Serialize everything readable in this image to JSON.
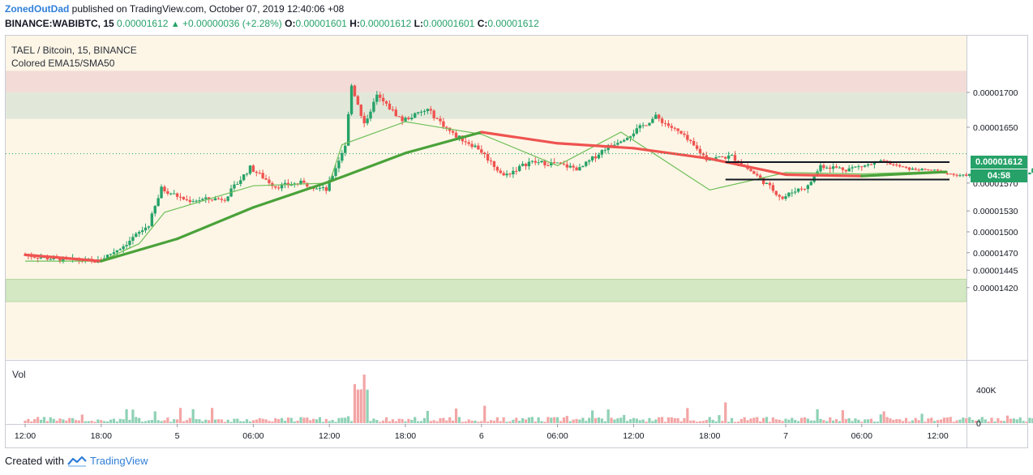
{
  "header": {
    "author": "ZonedOutDad",
    "published": "published on TradingView.com, October 07, 2019 12:40:06 +08",
    "symbol": "BINANCE:WABIBTC, 15",
    "last": "0.00001612",
    "change": "+0.00000036 (+2.28%)",
    "o_label": "O:",
    "o_value": "0.00001601",
    "h_label": "H:",
    "h_value": "0.00001612",
    "l_label": "L:",
    "l_value": "0.00001601",
    "c_label": "C:",
    "c_value": "0.00001612"
  },
  "legend": {
    "title": "TAEL / Bitcoin, 15, BINANCE",
    "indicator": "Colored EMA15/SMA50"
  },
  "volume_pane": {
    "label": "Vol",
    "axis_ticks": [
      "400K",
      "0"
    ]
  },
  "price_axis": {
    "ticks": [
      "0.00001700",
      "0.00001650",
      "0.00001570",
      "0.00001530",
      "0.00001500",
      "0.00001470",
      "0.00001445",
      "0.00001420"
    ],
    "last_price_label": "0.00001612",
    "countdown": "04:58"
  },
  "time_axis": {
    "ticks": [
      "12:00",
      "18:00",
      "5",
      "06:00",
      "12:00",
      "18:00",
      "6",
      "06:00",
      "12:00",
      "18:00",
      "7",
      "06:00",
      "12:00"
    ]
  },
  "footer": {
    "created_with": "Created with",
    "brand": "TradingView"
  },
  "colors": {
    "up": "#26a269",
    "down": "#ef5350",
    "ema": "#6fbf5a",
    "sma_green": "#4aa23a",
    "sma_red": "#ef5350",
    "supply_zone": "#f3dcd7",
    "mid_zone": "#e2e8d9",
    "demand_zone": "#d3e8c3",
    "background": "#fdf6e6"
  },
  "chart_data": {
    "type": "candlestick",
    "symbol": "BINANCE:WABIBTC",
    "interval": "15",
    "price_ylim": [
      1.4e-05,
      1.73e-05
    ],
    "x_range": [
      "Oct 4 12:00",
      "Oct 7 12:40"
    ],
    "zones": [
      {
        "kind": "supply",
        "from": 1.7e-05,
        "to": 1.731e-05
      },
      {
        "kind": "neutral",
        "from": 1.662e-05,
        "to": 1.7e-05
      },
      {
        "kind": "demand",
        "from": 1.4e-05,
        "to": 1.432e-05
      }
    ],
    "consolidation_box": {
      "top": 1.6e-05,
      "bottom": 1.575e-05,
      "start": "Oct 6 19:15",
      "end": "Oct 7 12:40"
    },
    "ohlc_last": {
      "open": 1.601e-05,
      "high": 1.612e-05,
      "low": 1.601e-05,
      "close": 1.612e-05
    },
    "ema15_series": [
      {
        "t": "Oct 4 12:00",
        "v": 1.458e-05
      },
      {
        "t": "Oct 4 18:00",
        "v": 1.458e-05
      },
      {
        "t": "Oct 4 21:00",
        "v": 1.483e-05
      },
      {
        "t": "Oct 4 23:00",
        "v": 1.528e-05
      },
      {
        "t": "Oct 5 06:00",
        "v": 1.566e-05
      },
      {
        "t": "Oct 5 12:00",
        "v": 1.57e-05
      },
      {
        "t": "Oct 5 13:00",
        "v": 1.625e-05
      },
      {
        "t": "Oct 5 18:00",
        "v": 1.658e-05
      },
      {
        "t": "Oct 6 00:00",
        "v": 1.64e-05
      },
      {
        "t": "Oct 6 06:00",
        "v": 1.595e-05
      },
      {
        "t": "Oct 6 11:00",
        "v": 1.643e-05
      },
      {
        "t": "Oct 6 18:00",
        "v": 1.56e-05
      },
      {
        "t": "Oct 7 00:00",
        "v": 1.585e-05
      },
      {
        "t": "Oct 7 06:00",
        "v": 1.583e-05
      },
      {
        "t": "Oct 7 12:40",
        "v": 1.587e-05
      }
    ],
    "sma50_series": [
      {
        "t": "Oct 4 12:00",
        "v": 1.467e-05
      },
      {
        "t": "Oct 4 18:00",
        "v": 1.458e-05
      },
      {
        "t": "Oct 5 00:00",
        "v": 1.49e-05
      },
      {
        "t": "Oct 5 06:00",
        "v": 1.535e-05
      },
      {
        "t": "Oct 5 12:00",
        "v": 1.572e-05
      },
      {
        "t": "Oct 5 18:00",
        "v": 1.613e-05
      },
      {
        "t": "Oct 6 00:00",
        "v": 1.643e-05
      },
      {
        "t": "Oct 6 06:00",
        "v": 1.627e-05
      },
      {
        "t": "Oct 6 12:00",
        "v": 1.62e-05
      },
      {
        "t": "Oct 6 18:00",
        "v": 1.605e-05
      },
      {
        "t": "Oct 7 00:00",
        "v": 1.582e-05
      },
      {
        "t": "Oct 7 06:00",
        "v": 1.58e-05
      },
      {
        "t": "Oct 7 12:40",
        "v": 1.586e-05
      }
    ],
    "volume_peak": {
      "t": "Oct 5 14:30",
      "value": 700000
    }
  }
}
